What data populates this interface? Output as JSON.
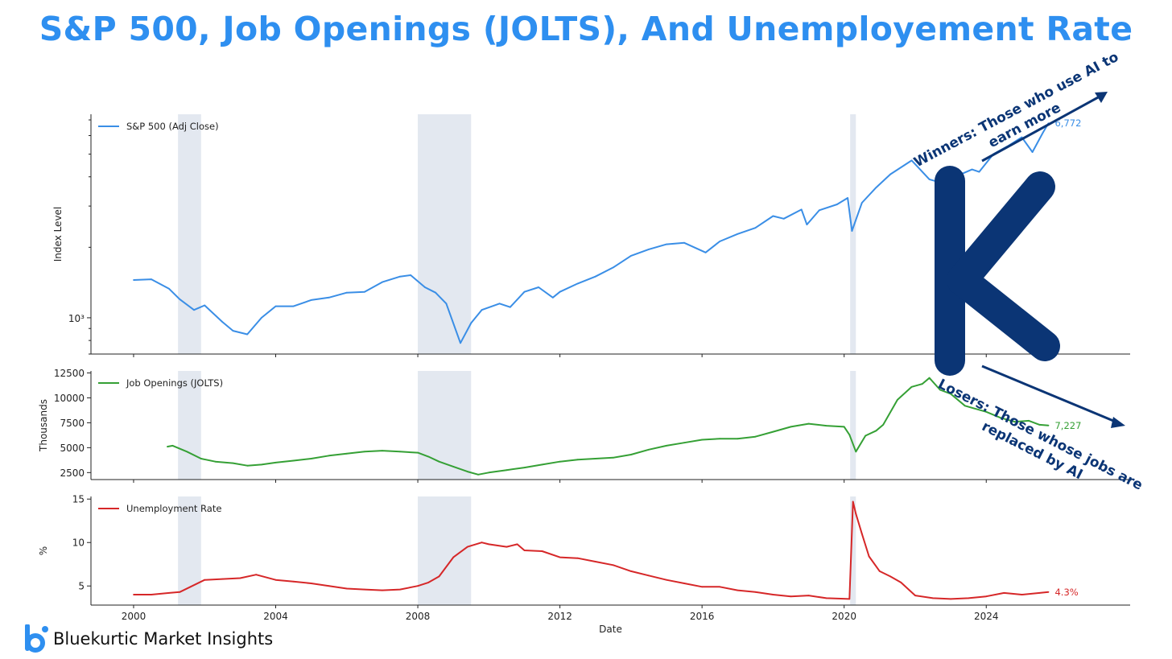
{
  "title": "S&P 500, Job Openings (JOLTS), And Unemployement Rate",
  "brand": {
    "name": "Bluekurtic Market Insights",
    "logo_icon": "bluekurtic-logo-icon"
  },
  "annotations": {
    "big_letter": "K",
    "winners_line1": "Winners: Those who use AI to",
    "winners_line2": "earn more",
    "losers_line1": "Losers: Those whose jobs are",
    "losers_line2": "replaced by AI",
    "letter_color": "#0b3575"
  },
  "chart_data": [
    {
      "type": "line",
      "panel": "sp500",
      "series": [
        {
          "name": "S&P 500 (Adj Close)",
          "color": "#3a8ee6",
          "x": [
            2000.0,
            2000.5,
            2001.0,
            2001.3,
            2001.7,
            2002.0,
            2002.5,
            2002.8,
            2003.2,
            2003.6,
            2004.0,
            2004.5,
            2005.0,
            2005.5,
            2006.0,
            2006.5,
            2007.0,
            2007.5,
            2007.8,
            2008.2,
            2008.5,
            2008.8,
            2009.2,
            2009.5,
            2009.8,
            2010.3,
            2010.6,
            2011.0,
            2011.4,
            2011.8,
            2012.0,
            2012.5,
            2013.0,
            2013.5,
            2014.0,
            2014.5,
            2015.0,
            2015.5,
            2016.1,
            2016.5,
            2017.0,
            2017.5,
            2018.0,
            2018.3,
            2018.8,
            2018.95,
            2019.3,
            2019.8,
            2020.1,
            2020.22,
            2020.5,
            2020.9,
            2021.3,
            2021.9,
            2022.4,
            2022.8,
            2023.2,
            2023.6,
            2023.8,
            2024.2,
            2024.6,
            2025.0,
            2025.3,
            2025.6,
            2025.75
          ],
          "values": [
            1450,
            1460,
            1330,
            1200,
            1080,
            1130,
            960,
            880,
            850,
            1000,
            1120,
            1120,
            1190,
            1220,
            1280,
            1290,
            1420,
            1500,
            1520,
            1350,
            1280,
            1150,
            780,
            950,
            1080,
            1150,
            1110,
            1290,
            1350,
            1220,
            1290,
            1400,
            1500,
            1640,
            1840,
            1960,
            2060,
            2090,
            1900,
            2120,
            2280,
            2420,
            2720,
            2650,
            2900,
            2500,
            2880,
            3050,
            3250,
            2350,
            3100,
            3600,
            4100,
            4700,
            3900,
            3750,
            4050,
            4300,
            4200,
            5000,
            5400,
            5900,
            5100,
            6200,
            6772
          ]
        }
      ],
      "y_scale": "log",
      "ylim": [
        700,
        7400
      ],
      "ylabel": "Index Level",
      "ytick_label": "10³",
      "end_label": "6,772"
    },
    {
      "type": "line",
      "panel": "jolts",
      "series": [
        {
          "name": "Job Openings (JOLTS)",
          "color": "#35a035",
          "x": [
            2000.95,
            2001.1,
            2001.5,
            2001.9,
            2002.3,
            2002.8,
            2003.2,
            2003.6,
            2004.0,
            2004.5,
            2005.0,
            2005.5,
            2006.0,
            2006.5,
            2007.0,
            2007.5,
            2008.0,
            2008.3,
            2008.6,
            2009.0,
            2009.4,
            2009.7,
            2010.0,
            2010.5,
            2011.0,
            2011.5,
            2012.0,
            2012.5,
            2013.0,
            2013.5,
            2014.0,
            2014.5,
            2015.0,
            2015.5,
            2016.0,
            2016.5,
            2017.0,
            2017.5,
            2018.0,
            2018.5,
            2019.0,
            2019.5,
            2020.0,
            2020.15,
            2020.33,
            2020.6,
            2020.9,
            2021.1,
            2021.5,
            2021.9,
            2022.2,
            2022.4,
            2022.7,
            2023.0,
            2023.4,
            2023.7,
            2024.0,
            2024.4,
            2024.8,
            2025.2,
            2025.5,
            2025.75
          ],
          "values": [
            5100,
            5200,
            4600,
            3900,
            3600,
            3450,
            3200,
            3300,
            3500,
            3700,
            3900,
            4200,
            4400,
            4600,
            4700,
            4600,
            4500,
            4100,
            3600,
            3100,
            2600,
            2300,
            2500,
            2750,
            3000,
            3300,
            3600,
            3800,
            3900,
            4000,
            4300,
            4800,
            5200,
            5500,
            5800,
            5900,
            5900,
            6100,
            6600,
            7100,
            7400,
            7200,
            7100,
            6300,
            4600,
            6200,
            6700,
            7300,
            9800,
            11100,
            11400,
            12000,
            10800,
            10400,
            9200,
            8900,
            8600,
            8000,
            7600,
            7700,
            7300,
            7227
          ]
        }
      ],
      "yticks": [
        2500,
        5000,
        7500,
        10000,
        12500
      ],
      "ylim": [
        1800,
        12700
      ],
      "ylabel": "Thousands",
      "end_label": "7,227"
    },
    {
      "type": "line",
      "panel": "unemployment",
      "series": [
        {
          "name": "Unemployment Rate",
          "color": "#d62728",
          "x": [
            2000.0,
            2000.5,
            2001.0,
            2001.3,
            2001.6,
            2002.0,
            2002.5,
            2003.0,
            2003.45,
            2004.0,
            2004.5,
            2005.0,
            2005.5,
            2006.0,
            2006.5,
            2007.0,
            2007.5,
            2008.0,
            2008.3,
            2008.6,
            2009.0,
            2009.4,
            2009.8,
            2010.0,
            2010.5,
            2010.8,
            2011.0,
            2011.5,
            2012.0,
            2012.5,
            2013.0,
            2013.5,
            2014.0,
            2014.5,
            2015.0,
            2015.5,
            2016.0,
            2016.5,
            2017.0,
            2017.5,
            2018.0,
            2018.5,
            2019.0,
            2019.5,
            2020.15,
            2020.25,
            2020.33,
            2020.5,
            2020.7,
            2021.0,
            2021.3,
            2021.6,
            2022.0,
            2022.5,
            2023.0,
            2023.5,
            2024.0,
            2024.5,
            2025.0,
            2025.5,
            2025.75
          ],
          "values": [
            4.0,
            4.0,
            4.2,
            4.3,
            4.9,
            5.7,
            5.8,
            5.9,
            6.3,
            5.7,
            5.5,
            5.3,
            5.0,
            4.7,
            4.6,
            4.5,
            4.6,
            5.0,
            5.4,
            6.1,
            8.3,
            9.5,
            10.0,
            9.8,
            9.5,
            9.8,
            9.1,
            9.0,
            8.3,
            8.2,
            7.8,
            7.4,
            6.7,
            6.2,
            5.7,
            5.3,
            4.9,
            4.9,
            4.5,
            4.3,
            4.0,
            3.8,
            3.9,
            3.6,
            3.5,
            14.7,
            13.3,
            11.0,
            8.4,
            6.7,
            6.1,
            5.4,
            3.9,
            3.6,
            3.5,
            3.6,
            3.8,
            4.2,
            4.0,
            4.2,
            4.3
          ]
        }
      ],
      "yticks": [
        5,
        10,
        15
      ],
      "ylim": [
        2.8,
        15.3
      ],
      "ylabel": "%",
      "end_label": "4.3%"
    }
  ],
  "x_axis": {
    "label": "Date",
    "ticks": [
      2000,
      2004,
      2008,
      2012,
      2016,
      2020,
      2024
    ],
    "range": [
      1998.8,
      2028.05
    ]
  },
  "recessions": [
    [
      2001.25,
      2001.9
    ],
    [
      2008.0,
      2009.5
    ],
    [
      2020.17,
      2020.33
    ]
  ],
  "colors": {
    "title": "#2e8ff0",
    "recession_band": "#e3e8f0",
    "annotation": "#0b3575"
  }
}
